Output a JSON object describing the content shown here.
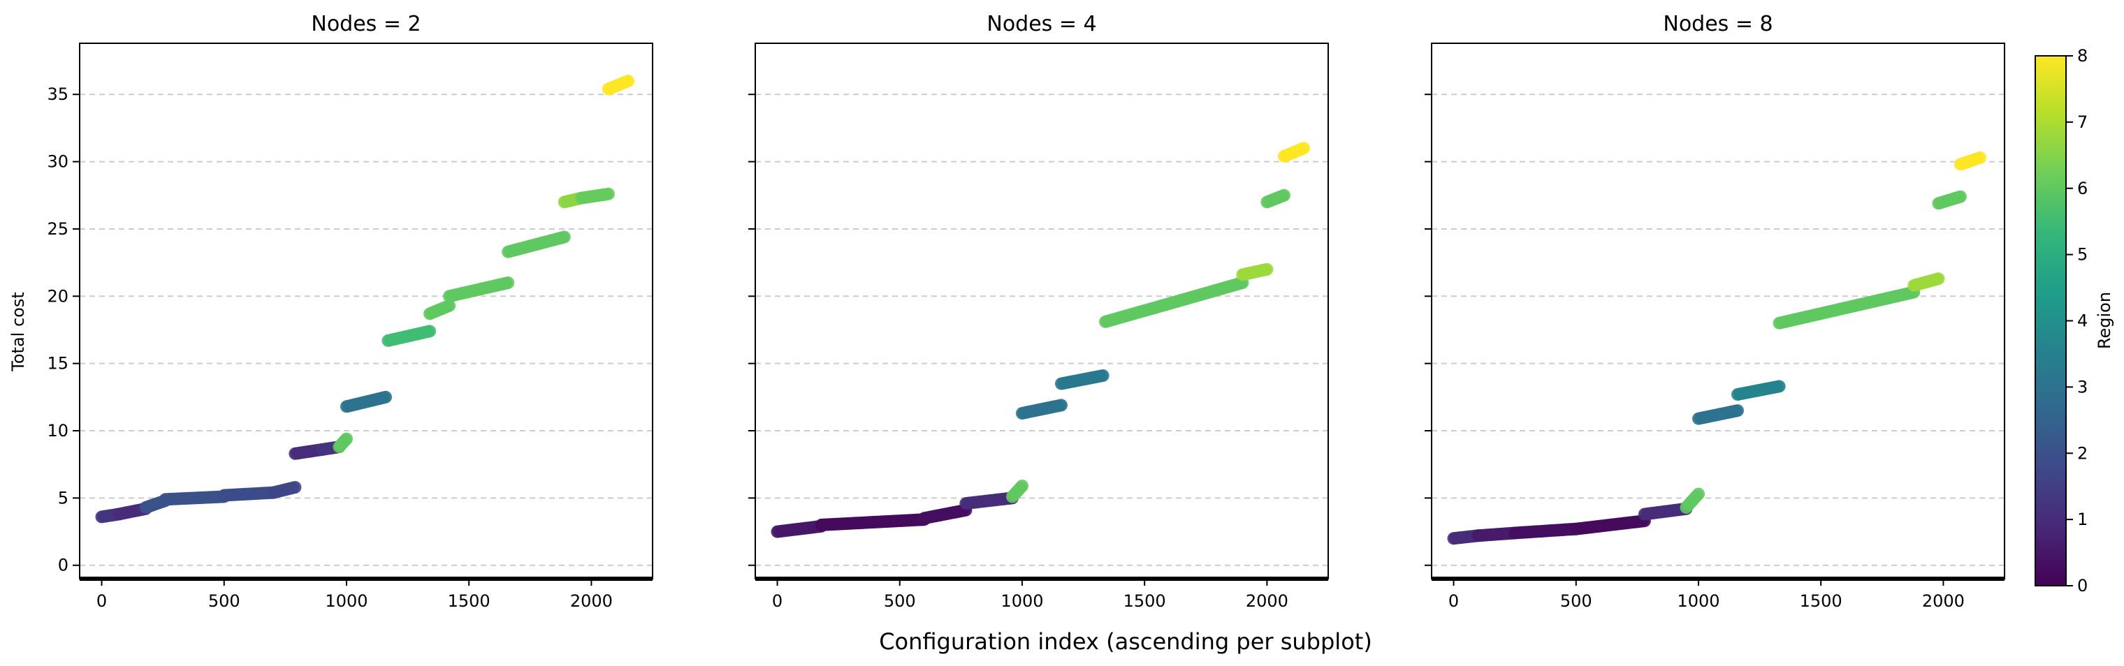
{
  "figure": {
    "supxlabel": "Configuration index (ascending per subplot)",
    "ylabel": "Total cost"
  },
  "colorbar": {
    "label": "Region",
    "min": 0,
    "max": 8,
    "ticks": [
      "0",
      "1",
      "2",
      "3",
      "4",
      "5",
      "6",
      "7",
      "8"
    ],
    "colormap": "viridis",
    "stops": [
      "#440154",
      "#482878",
      "#3e4989",
      "#31688e",
      "#26828e",
      "#1f9e89",
      "#35b779",
      "#6ece58",
      "#b5de2b",
      "#fde725"
    ]
  },
  "axes": {
    "x_ticks": [
      "0",
      "500",
      "1000",
      "1500",
      "2000"
    ],
    "x_tick_values": [
      0,
      500,
      1000,
      1500,
      2000
    ],
    "xlim": [
      -90,
      2250
    ],
    "y_ticks": [
      "0",
      "5",
      "10",
      "15",
      "20",
      "25",
      "30",
      "35"
    ],
    "y_tick_values": [
      0,
      5,
      10,
      15,
      20,
      25,
      30,
      35
    ],
    "ylim": [
      -1,
      38.8
    ],
    "grid_y": true
  },
  "chart_data": [
    {
      "type": "scatter",
      "title": "Nodes = 2",
      "segments": [
        {
          "x0": 0,
          "x1": 70,
          "y0": 3.6,
          "y1": 3.8,
          "region": 1.2
        },
        {
          "x0": 70,
          "x1": 180,
          "y0": 3.8,
          "y1": 4.2,
          "region": 1.0
        },
        {
          "x0": 180,
          "x1": 260,
          "y0": 4.3,
          "y1": 4.8,
          "region": 2.0
        },
        {
          "x0": 260,
          "x1": 500,
          "y0": 4.9,
          "y1": 5.1,
          "region": 2.0
        },
        {
          "x0": 500,
          "x1": 700,
          "y0": 5.2,
          "y1": 5.4,
          "region": 1.9
        },
        {
          "x0": 700,
          "x1": 790,
          "y0": 5.4,
          "y1": 5.8,
          "region": 1.7
        },
        {
          "x0": 790,
          "x1": 900,
          "y0": 8.3,
          "y1": 8.6,
          "region": 1.0
        },
        {
          "x0": 900,
          "x1": 970,
          "y0": 8.6,
          "y1": 8.8,
          "region": 1.2
        },
        {
          "x0": 970,
          "x1": 1000,
          "y0": 8.8,
          "y1": 9.4,
          "region": 6.0
        },
        {
          "x0": 1000,
          "x1": 1160,
          "y0": 11.8,
          "y1": 12.5,
          "region": 3.0
        },
        {
          "x0": 1170,
          "x1": 1340,
          "y0": 16.7,
          "y1": 17.4,
          "region": 5.5
        },
        {
          "x0": 1340,
          "x1": 1420,
          "y0": 18.7,
          "y1": 19.3,
          "region": 6.0
        },
        {
          "x0": 1420,
          "x1": 1660,
          "y0": 20.0,
          "y1": 21.0,
          "region": 6.0
        },
        {
          "x0": 1660,
          "x1": 1890,
          "y0": 23.3,
          "y1": 24.4,
          "region": 6.0
        },
        {
          "x0": 1890,
          "x1": 1960,
          "y0": 27.0,
          "y1": 27.3,
          "region": 6.6
        },
        {
          "x0": 1960,
          "x1": 2070,
          "y0": 27.3,
          "y1": 27.6,
          "region": 6.1
        },
        {
          "x0": 2070,
          "x1": 2150,
          "y0": 35.4,
          "y1": 36.0,
          "region": 8.0
        }
      ]
    },
    {
      "type": "scatter",
      "title": "Nodes = 4",
      "segments": [
        {
          "x0": 0,
          "x1": 180,
          "y0": 2.5,
          "y1": 2.9,
          "region": 0.5
        },
        {
          "x0": 180,
          "x1": 600,
          "y0": 3.0,
          "y1": 3.4,
          "region": 0.2
        },
        {
          "x0": 600,
          "x1": 770,
          "y0": 3.5,
          "y1": 4.1,
          "region": 0.3
        },
        {
          "x0": 770,
          "x1": 960,
          "y0": 4.6,
          "y1": 5.0,
          "region": 1.0
        },
        {
          "x0": 960,
          "x1": 1000,
          "y0": 5.1,
          "y1": 5.9,
          "region": 6.0
        },
        {
          "x0": 1000,
          "x1": 1160,
          "y0": 11.3,
          "y1": 11.9,
          "region": 3.0
        },
        {
          "x0": 1160,
          "x1": 1330,
          "y0": 13.5,
          "y1": 14.1,
          "region": 3.2
        },
        {
          "x0": 1340,
          "x1": 1900,
          "y0": 18.1,
          "y1": 21.0,
          "region": 6.0
        },
        {
          "x0": 1900,
          "x1": 2000,
          "y0": 21.6,
          "y1": 22.0,
          "region": 6.8
        },
        {
          "x0": 2000,
          "x1": 2070,
          "y0": 27.0,
          "y1": 27.5,
          "region": 6.0
        },
        {
          "x0": 2070,
          "x1": 2150,
          "y0": 30.4,
          "y1": 31.0,
          "region": 8.0
        }
      ]
    },
    {
      "type": "scatter",
      "title": "Nodes = 8",
      "segments": [
        {
          "x0": 0,
          "x1": 100,
          "y0": 2.0,
          "y1": 2.2,
          "region": 1.0
        },
        {
          "x0": 100,
          "x1": 250,
          "y0": 2.2,
          "y1": 2.4,
          "region": 0.6
        },
        {
          "x0": 250,
          "x1": 500,
          "y0": 2.4,
          "y1": 2.7,
          "region": 0.3
        },
        {
          "x0": 500,
          "x1": 780,
          "y0": 2.7,
          "y1": 3.3,
          "region": 0.2
        },
        {
          "x0": 780,
          "x1": 950,
          "y0": 3.8,
          "y1": 4.2,
          "region": 1.0
        },
        {
          "x0": 950,
          "x1": 1000,
          "y0": 4.3,
          "y1": 5.3,
          "region": 6.0
        },
        {
          "x0": 1000,
          "x1": 1160,
          "y0": 10.9,
          "y1": 11.5,
          "region": 3.0
        },
        {
          "x0": 1160,
          "x1": 1330,
          "y0": 12.7,
          "y1": 13.3,
          "region": 3.6
        },
        {
          "x0": 1330,
          "x1": 1880,
          "y0": 18.0,
          "y1": 20.3,
          "region": 6.0
        },
        {
          "x0": 1880,
          "x1": 1980,
          "y0": 20.8,
          "y1": 21.3,
          "region": 6.8
        },
        {
          "x0": 1980,
          "x1": 2070,
          "y0": 26.9,
          "y1": 27.4,
          "region": 6.0
        },
        {
          "x0": 2070,
          "x1": 2150,
          "y0": 29.8,
          "y1": 30.3,
          "region": 8.0
        }
      ]
    }
  ]
}
